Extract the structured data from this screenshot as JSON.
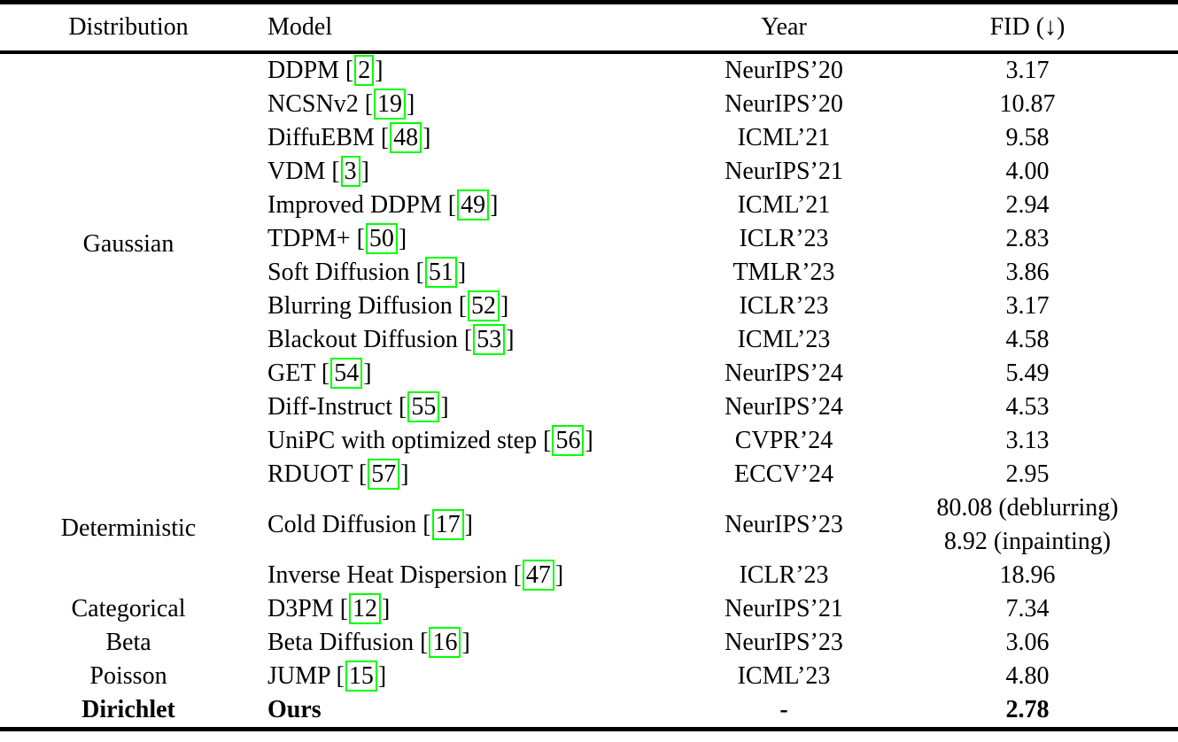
{
  "page": {
    "background": "#ffffff",
    "text_color": "#000000",
    "rule_color": "#000000",
    "citation_box_color": "#00ff00"
  },
  "table": {
    "columns": [
      "Distribution",
      "Model",
      "Year",
      "FID (↓)"
    ],
    "rows": [
      {
        "group": {
          "label": "Gaussian",
          "rowspan": 13,
          "bold": false
        },
        "model": {
          "name": "DDPM",
          "cite": "2",
          "bold": false
        },
        "year": "NeurIPS’20",
        "fid": [
          "3.17"
        ],
        "fid_bold": false
      },
      {
        "model": {
          "name": "NCSNv2",
          "cite": "19",
          "bold": false
        },
        "year": "NeurIPS’20",
        "fid": [
          "10.87"
        ],
        "fid_bold": false
      },
      {
        "model": {
          "name": "DiffuEBM",
          "cite": "48",
          "bold": false
        },
        "year": "ICML’21",
        "fid": [
          "9.58"
        ],
        "fid_bold": false
      },
      {
        "model": {
          "name": "VDM",
          "cite": "3",
          "bold": false
        },
        "year": "NeurIPS’21",
        "fid": [
          "4.00"
        ],
        "fid_bold": false
      },
      {
        "model": {
          "name": "Improved DDPM",
          "cite": "49",
          "bold": false
        },
        "year": "ICML’21",
        "fid": [
          "2.94"
        ],
        "fid_bold": false
      },
      {
        "model": {
          "name": "TDPM+",
          "cite": "50",
          "bold": false
        },
        "year": "ICLR’23",
        "fid": [
          "2.83"
        ],
        "fid_bold": false
      },
      {
        "model": {
          "name": "Soft Diffusion",
          "cite": "51",
          "bold": false
        },
        "year": "TMLR’23",
        "fid": [
          "3.86"
        ],
        "fid_bold": false
      },
      {
        "model": {
          "name": "Blurring Diffusion",
          "cite": "52",
          "bold": false
        },
        "year": "ICLR’23",
        "fid": [
          "3.17"
        ],
        "fid_bold": false
      },
      {
        "model": {
          "name": "Blackout Diffusion",
          "cite": "53",
          "bold": false
        },
        "year": "ICML’23",
        "fid": [
          "4.58"
        ],
        "fid_bold": false
      },
      {
        "model": {
          "name": "GET",
          "cite": "54",
          "bold": false
        },
        "year": "NeurIPS’24",
        "fid": [
          "5.49"
        ],
        "fid_bold": false
      },
      {
        "model": {
          "name": "Diff-Instruct",
          "cite": "55",
          "bold": false
        },
        "year": "NeurIPS’24",
        "fid": [
          "4.53"
        ],
        "fid_bold": false
      },
      {
        "model": {
          "name": "UniPC with optimized step",
          "cite": "56",
          "bold": false
        },
        "year": "CVPR’24",
        "fid": [
          "3.13"
        ],
        "fid_bold": false
      },
      {
        "model": {
          "name": "RDUOT",
          "cite": "57",
          "bold": false
        },
        "year": "ECCV’24",
        "fid": [
          "2.95"
        ],
        "fid_bold": false
      },
      {
        "group": {
          "label": "Deterministic",
          "rowspan": 2,
          "bold": false
        },
        "model": {
          "name": "Cold Diffusion",
          "cite": "17",
          "bold": false
        },
        "year": "NeurIPS’23",
        "fid": [
          "80.08 (deblurring)",
          "8.92 (inpainting)"
        ],
        "fid_bold": false
      },
      {
        "model": {
          "name": "Inverse Heat Dispersion",
          "cite": "47",
          "bold": false
        },
        "year": "ICLR’23",
        "fid": [
          "18.96"
        ],
        "fid_bold": false
      },
      {
        "group": {
          "label": "Categorical",
          "rowspan": 1,
          "bold": false
        },
        "model": {
          "name": "D3PM",
          "cite": "12",
          "bold": false
        },
        "year": "NeurIPS’21",
        "fid": [
          "7.34"
        ],
        "fid_bold": false
      },
      {
        "group": {
          "label": "Beta",
          "rowspan": 1,
          "bold": false
        },
        "model": {
          "name": "Beta Diffusion",
          "cite": "16",
          "bold": false
        },
        "year": "NeurIPS’23",
        "fid": [
          "3.06"
        ],
        "fid_bold": false
      },
      {
        "group": {
          "label": "Poisson",
          "rowspan": 1,
          "bold": false
        },
        "model": {
          "name": "JUMP",
          "cite": "15",
          "bold": false
        },
        "year": "ICML’23",
        "fid": [
          "4.80"
        ],
        "fid_bold": false
      },
      {
        "group": {
          "label": "Dirichlet",
          "rowspan": 1,
          "bold": true
        },
        "model": {
          "name": "Ours",
          "cite": null,
          "bold": true
        },
        "year": "-",
        "fid": [
          "2.78"
        ],
        "fid_bold": true
      }
    ]
  }
}
